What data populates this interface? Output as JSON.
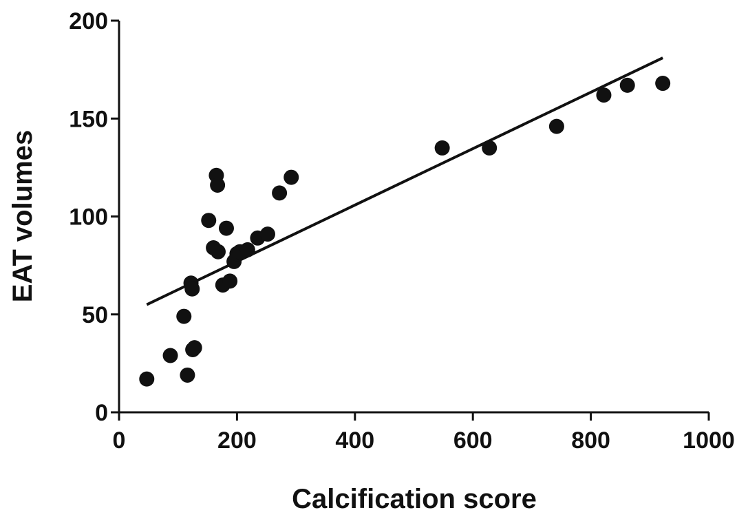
{
  "chart_data": {
    "type": "scatter",
    "xlabel": "Calcification score",
    "ylabel": "EAT volumes",
    "xlim": [
      0,
      1000
    ],
    "ylim": [
      0,
      200
    ],
    "xticks": [
      "0",
      "200",
      "400",
      "600",
      "800",
      "1000"
    ],
    "yticks": [
      "0",
      "50",
      "100",
      "150",
      "200"
    ],
    "grid": false,
    "points": [
      {
        "x": 47,
        "y": 17
      },
      {
        "x": 87,
        "y": 29
      },
      {
        "x": 110,
        "y": 49
      },
      {
        "x": 116,
        "y": 19
      },
      {
        "x": 122,
        "y": 66
      },
      {
        "x": 124,
        "y": 63
      },
      {
        "x": 125,
        "y": 32
      },
      {
        "x": 128,
        "y": 33
      },
      {
        "x": 152,
        "y": 98
      },
      {
        "x": 160,
        "y": 84
      },
      {
        "x": 165,
        "y": 121
      },
      {
        "x": 167,
        "y": 116
      },
      {
        "x": 168,
        "y": 82
      },
      {
        "x": 176,
        "y": 65
      },
      {
        "x": 182,
        "y": 94
      },
      {
        "x": 188,
        "y": 67
      },
      {
        "x": 195,
        "y": 77
      },
      {
        "x": 200,
        "y": 81
      },
      {
        "x": 205,
        "y": 82
      },
      {
        "x": 218,
        "y": 83
      },
      {
        "x": 235,
        "y": 89
      },
      {
        "x": 252,
        "y": 91
      },
      {
        "x": 272,
        "y": 112
      },
      {
        "x": 292,
        "y": 120
      },
      {
        "x": 548,
        "y": 135
      },
      {
        "x": 628,
        "y": 135
      },
      {
        "x": 742,
        "y": 146
      },
      {
        "x": 822,
        "y": 162
      },
      {
        "x": 862,
        "y": 167
      },
      {
        "x": 922,
        "y": 168
      }
    ],
    "fit_line": {
      "x": [
        47,
        922
      ],
      "y": [
        55,
        181
      ]
    }
  }
}
